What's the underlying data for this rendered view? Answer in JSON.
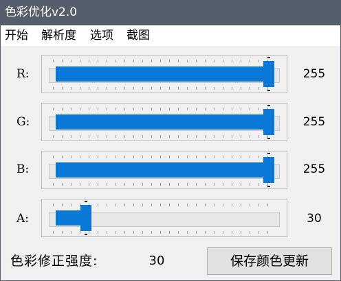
{
  "window": {
    "title": "色彩优化v2.0"
  },
  "menu": {
    "items": [
      "开始",
      "解析度",
      "选项",
      "截图"
    ]
  },
  "sliders": [
    {
      "label": "R:",
      "value": "255",
      "level": 255,
      "max": 255
    },
    {
      "label": "G:",
      "value": "255",
      "level": 255,
      "max": 255
    },
    {
      "label": "B:",
      "value": "255",
      "level": 255,
      "max": 255
    },
    {
      "label": "A:",
      "value": "30",
      "level": 30,
      "max": 255
    }
  ],
  "footer": {
    "strength_label": "色彩修正强度:",
    "strength_value": "30",
    "save_label": "保存颜色更新"
  },
  "colors": {
    "accent": "#0a78d7",
    "titlebar": "#555e6b",
    "menubar": "#ffffff",
    "background": "#f0f0f0"
  }
}
